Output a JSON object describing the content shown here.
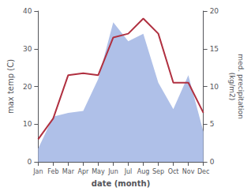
{
  "chart_data": {
    "type": "line",
    "xlabel": "date (month)",
    "ylabel": "max temp (C)",
    "y2label": "med. precipitation\n(kg/m2)",
    "categories": [
      "Jan",
      "Feb",
      "Mar",
      "Apr",
      "May",
      "Jun",
      "Jul",
      "Aug",
      "Sep",
      "Oct",
      "Nov",
      "Dec"
    ],
    "series": [
      {
        "type": "area",
        "color": "#afc0e8",
        "values": [
          3.5,
          12,
          13,
          13.5,
          22,
          37,
          32,
          34,
          21,
          14,
          23,
          8
        ]
      },
      {
        "type": "line",
        "color": "#b03040",
        "values": [
          6,
          11.5,
          23,
          23.5,
          23,
          33,
          34,
          38,
          34,
          21,
          21,
          13
        ]
      }
    ],
    "ylim": [
      0,
      40
    ],
    "yticks": [
      0,
      10,
      20,
      30,
      40
    ],
    "y2lim": [
      0,
      20
    ],
    "y2ticks": [
      0,
      5,
      10,
      15,
      20
    ],
    "grid": false
  }
}
